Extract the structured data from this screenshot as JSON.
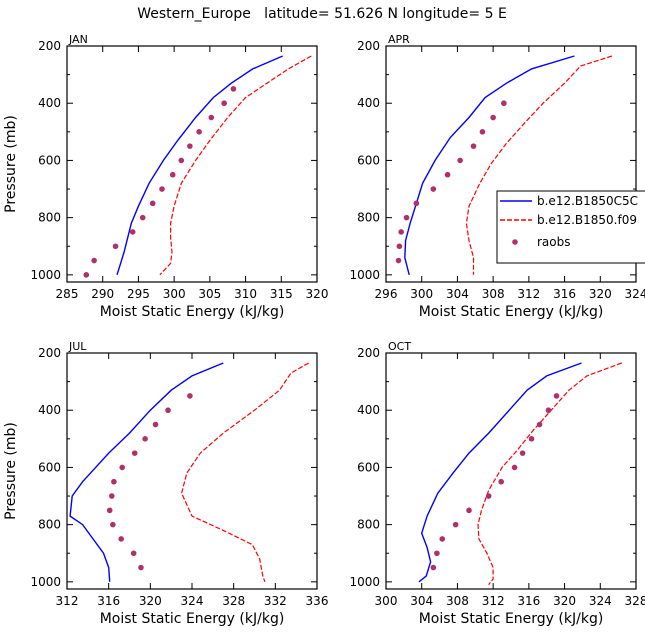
{
  "figure": {
    "title": "Western_Europe   latitude= 51.626 N longitude= 5 E",
    "legend": {
      "entries": [
        {
          "label": "b.e12.B1850C5C",
          "style": "solid",
          "color": "#0000ff"
        },
        {
          "label": "b.e12.B1850.f09",
          "style": "dashed",
          "color": "#ff0000"
        },
        {
          "label": "raobs",
          "style": "dots",
          "color": "#b0306a"
        }
      ]
    }
  },
  "chart_data": [
    {
      "type": "line",
      "title": "JAN",
      "xlabel": "Moist Static Energy (kJ/kg)",
      "ylabel": "Pressure (mb)",
      "xlim": [
        285,
        320
      ],
      "ylim": [
        1025,
        200
      ],
      "xticks": [
        285,
        290,
        295,
        300,
        305,
        310,
        315,
        320
      ],
      "yticks": [
        200,
        400,
        600,
        800,
        1000
      ],
      "series": [
        {
          "style": "solid",
          "color": "#0000ff",
          "points": [
            [
              315.2,
              235
            ],
            [
              311,
              280
            ],
            [
              308,
              330
            ],
            [
              305.5,
              380
            ],
            [
              303,
              450
            ],
            [
              300.5,
              530
            ],
            [
              298.5,
              600
            ],
            [
              296.5,
              680
            ],
            [
              295,
              760
            ],
            [
              294,
              820
            ],
            [
              293.5,
              870
            ],
            [
              293,
              920
            ],
            [
              292.5,
              960
            ],
            [
              292,
              1000
            ]
          ]
        },
        {
          "style": "dashed",
          "color": "#ff0000",
          "points": [
            [
              319.2,
              235
            ],
            [
              316,
              280
            ],
            [
              313,
              330
            ],
            [
              310,
              380
            ],
            [
              307.5,
              450
            ],
            [
              305,
              530
            ],
            [
              303,
              600
            ],
            [
              301,
              680
            ],
            [
              300,
              760
            ],
            [
              299.5,
              820
            ],
            [
              299.5,
              870
            ],
            [
              299.7,
              920
            ],
            [
              299.5,
              960
            ],
            [
              298,
              1000
            ]
          ]
        },
        {
          "style": "dots",
          "color": "#b0306a",
          "points": [
            [
              308.3,
              350
            ],
            [
              307,
              400
            ],
            [
              305.2,
              450
            ],
            [
              303.5,
              500
            ],
            [
              302.2,
              550
            ],
            [
              301,
              600
            ],
            [
              299.8,
              650
            ],
            [
              298.3,
              700
            ],
            [
              297,
              750
            ],
            [
              295.6,
              800
            ],
            [
              294.2,
              850
            ],
            [
              291.8,
              900
            ],
            [
              288.8,
              950
            ],
            [
              287.7,
              1000
            ]
          ]
        }
      ]
    },
    {
      "type": "line",
      "title": "APR",
      "xlabel": "Moist Static Energy (kJ/kg)",
      "ylabel": "",
      "xlim": [
        296,
        324
      ],
      "ylim": [
        1025,
        200
      ],
      "xticks": [
        296,
        300,
        304,
        308,
        312,
        316,
        320,
        324
      ],
      "yticks": [
        200,
        400,
        600,
        800,
        1000
      ],
      "series": [
        {
          "style": "solid",
          "color": "#0000ff",
          "points": [
            [
              317.1,
              235
            ],
            [
              312.3,
              280
            ],
            [
              309.5,
              330
            ],
            [
              307.1,
              380
            ],
            [
              305.3,
              450
            ],
            [
              303.2,
              520
            ],
            [
              301.5,
              600
            ],
            [
              300.1,
              680
            ],
            [
              299.3,
              760
            ],
            [
              298.7,
              820
            ],
            [
              298.2,
              880
            ],
            [
              298.1,
              940
            ],
            [
              298.6,
              1000
            ]
          ]
        },
        {
          "style": "dashed",
          "color": "#ff0000",
          "points": [
            [
              321.3,
              235
            ],
            [
              317.8,
              270
            ],
            [
              316,
              330
            ],
            [
              313.6,
              400
            ],
            [
              311.5,
              470
            ],
            [
              309.5,
              540
            ],
            [
              307.8,
              610
            ],
            [
              306.5,
              680
            ],
            [
              305.3,
              760
            ],
            [
              305,
              820
            ],
            [
              305.3,
              880
            ],
            [
              305.8,
              940
            ],
            [
              305.8,
              1000
            ]
          ]
        },
        {
          "style": "dots",
          "color": "#b0306a",
          "points": [
            [
              309.2,
              400
            ],
            [
              308,
              450
            ],
            [
              306.8,
              500
            ],
            [
              305.8,
              550
            ],
            [
              304.3,
              600
            ],
            [
              302.9,
              650
            ],
            [
              301.3,
              700
            ],
            [
              299.4,
              750
            ],
            [
              298.3,
              800
            ],
            [
              297.7,
              850
            ],
            [
              297.5,
              900
            ],
            [
              297.4,
              950
            ]
          ]
        }
      ]
    },
    {
      "type": "line",
      "title": "JUL",
      "xlabel": "Moist Static Energy (kJ/kg)",
      "ylabel": "Pressure (mb)",
      "xlim": [
        312,
        336
      ],
      "ylim": [
        1025,
        200
      ],
      "xticks": [
        312,
        316,
        320,
        324,
        328,
        332,
        336
      ],
      "yticks": [
        200,
        400,
        600,
        800,
        1000
      ],
      "series": [
        {
          "style": "solid",
          "color": "#0000ff",
          "points": [
            [
              327,
              235
            ],
            [
              324,
              280
            ],
            [
              322,
              330
            ],
            [
              320,
              400
            ],
            [
              318,
              480
            ],
            [
              316,
              550
            ],
            [
              314.5,
              610
            ],
            [
              313.5,
              650
            ],
            [
              312.5,
              700
            ],
            [
              312.3,
              770
            ],
            [
              313.5,
              800
            ],
            [
              314.5,
              850
            ],
            [
              315.5,
              900
            ],
            [
              316,
              950
            ],
            [
              316.1,
              1000
            ]
          ]
        },
        {
          "style": "dashed",
          "color": "#ff0000",
          "points": [
            [
              335.2,
              235
            ],
            [
              333.5,
              270
            ],
            [
              332.4,
              330
            ],
            [
              330,
              400
            ],
            [
              327,
              480
            ],
            [
              324.8,
              550
            ],
            [
              323.5,
              620
            ],
            [
              323,
              690
            ],
            [
              323.5,
              730
            ],
            [
              324,
              770
            ],
            [
              327,
              820
            ],
            [
              329.8,
              870
            ],
            [
              330.5,
              920
            ],
            [
              330.8,
              980
            ],
            [
              331,
              1000
            ]
          ]
        },
        {
          "style": "dots",
          "color": "#b0306a",
          "points": [
            [
              323.8,
              350
            ],
            [
              321.7,
              400
            ],
            [
              320.5,
              450
            ],
            [
              319.5,
              500
            ],
            [
              318.5,
              550
            ],
            [
              317.3,
              600
            ],
            [
              316.5,
              650
            ],
            [
              316.3,
              700
            ],
            [
              316.1,
              750
            ],
            [
              316.4,
              800
            ],
            [
              317.2,
              850
            ],
            [
              318.4,
              900
            ],
            [
              319.1,
              950
            ]
          ]
        }
      ]
    },
    {
      "type": "line",
      "title": "OCT",
      "xlabel": "Moist Static Energy (kJ/kg)",
      "ylabel": "",
      "xlim": [
        300,
        328
      ],
      "ylim": [
        1025,
        200
      ],
      "xticks": [
        300,
        304,
        308,
        312,
        316,
        320,
        324,
        328
      ],
      "yticks": [
        200,
        400,
        600,
        800,
        1000
      ],
      "series": [
        {
          "style": "solid",
          "color": "#0000ff",
          "points": [
            [
              321.9,
              235
            ],
            [
              318,
              280
            ],
            [
              315.8,
              330
            ],
            [
              313.8,
              400
            ],
            [
              311.5,
              480
            ],
            [
              309.3,
              550
            ],
            [
              307.5,
              620
            ],
            [
              305.8,
              690
            ],
            [
              304.6,
              770
            ],
            [
              304,
              830
            ],
            [
              304.6,
              880
            ],
            [
              305,
              930
            ],
            [
              304.5,
              980
            ],
            [
              303.7,
              1000
            ]
          ]
        },
        {
          "style": "dashed",
          "color": "#ff0000",
          "points": [
            [
              326.4,
              235
            ],
            [
              322.5,
              280
            ],
            [
              320.5,
              330
            ],
            [
              318.5,
              400
            ],
            [
              316.5,
              470
            ],
            [
              314.7,
              540
            ],
            [
              313,
              600
            ],
            [
              311.5,
              680
            ],
            [
              310.7,
              750
            ],
            [
              310.3,
              800
            ],
            [
              310.4,
              850
            ],
            [
              311.3,
              900
            ],
            [
              312,
              950
            ],
            [
              312,
              990
            ],
            [
              311.5,
              1010
            ]
          ]
        },
        {
          "style": "dots",
          "color": "#b0306a",
          "points": [
            [
              319.1,
              350
            ],
            [
              318.2,
              400
            ],
            [
              317.2,
              450
            ],
            [
              316.3,
              500
            ],
            [
              315.3,
              550
            ],
            [
              314.4,
              600
            ],
            [
              312.9,
              650
            ],
            [
              311.5,
              700
            ],
            [
              309.3,
              750
            ],
            [
              307.8,
              800
            ],
            [
              306.3,
              850
            ],
            [
              305.7,
              900
            ],
            [
              305.3,
              950
            ]
          ]
        }
      ]
    }
  ]
}
